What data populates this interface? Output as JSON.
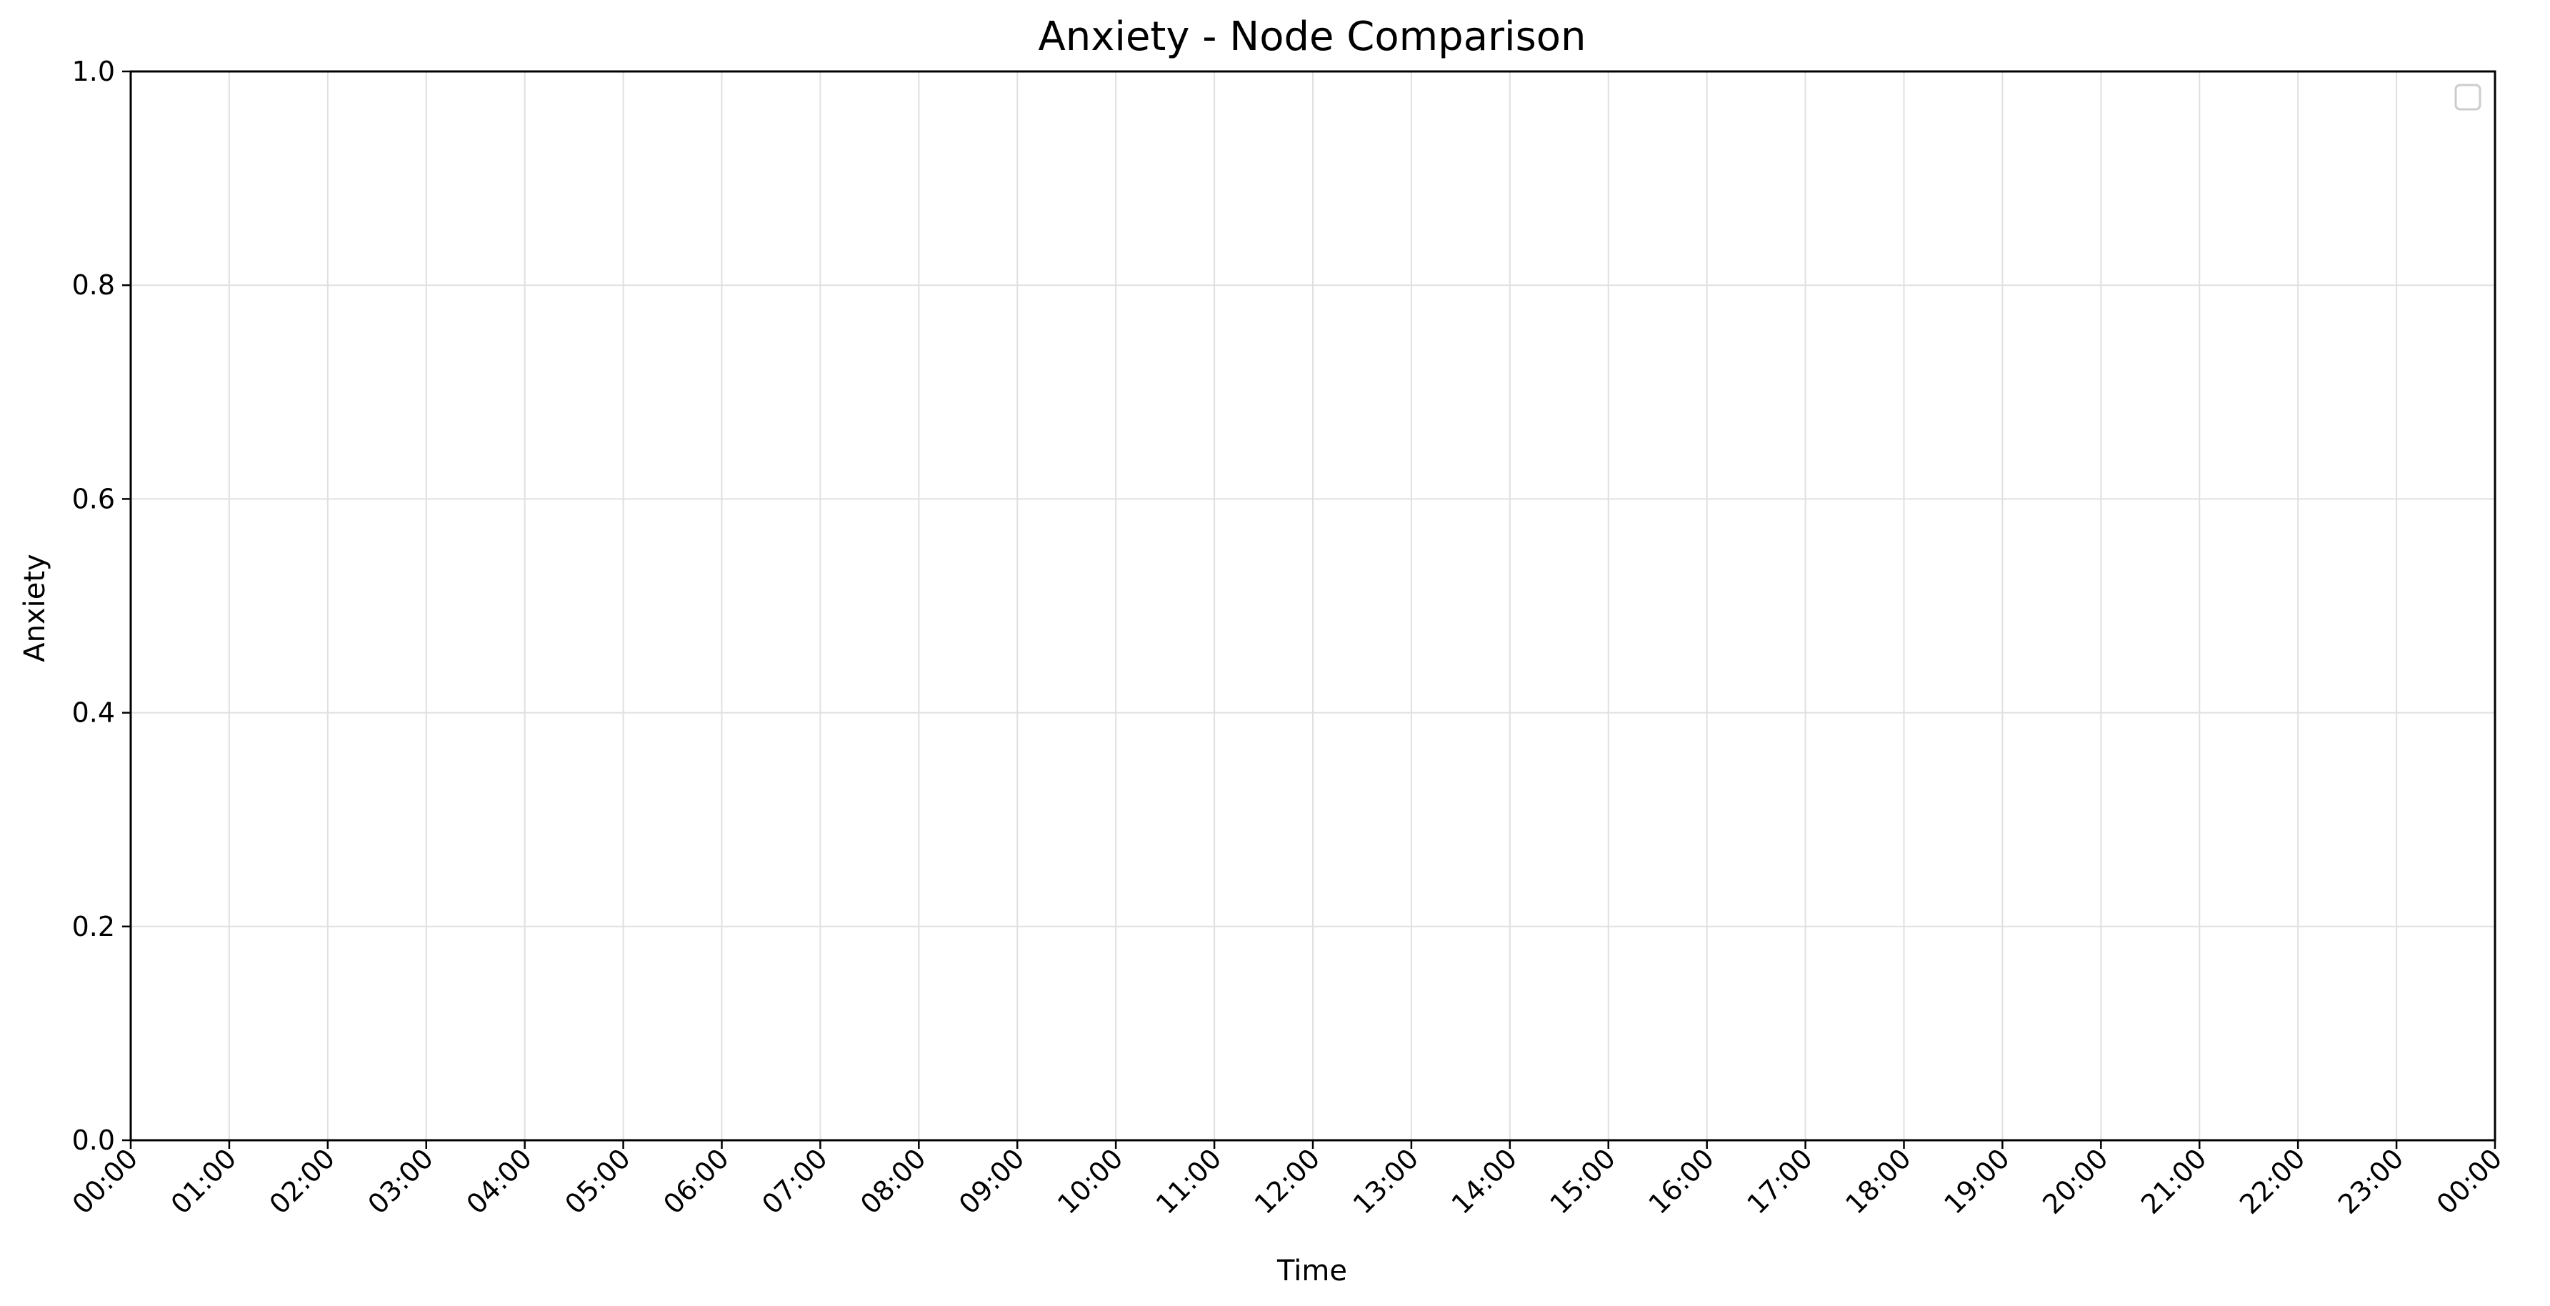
{
  "chart_data": {
    "type": "line",
    "title": "Anxiety - Node Comparison",
    "xlabel": "Time",
    "ylabel": "Anxiety",
    "x_ticks": [
      "00:00",
      "01:00",
      "02:00",
      "03:00",
      "04:00",
      "05:00",
      "06:00",
      "07:00",
      "08:00",
      "09:00",
      "10:00",
      "11:00",
      "12:00",
      "13:00",
      "14:00",
      "15:00",
      "16:00",
      "17:00",
      "18:00",
      "19:00",
      "20:00",
      "21:00",
      "22:00",
      "23:00",
      "00:00"
    ],
    "y_ticks": [
      "0.0",
      "0.2",
      "0.4",
      "0.6",
      "0.8",
      "1.0"
    ],
    "ylim": [
      0,
      1
    ],
    "xlim": [
      "00:00",
      "00:00"
    ],
    "series": [],
    "grid": true,
    "legend": {
      "placement": "upper right",
      "entries": []
    },
    "colors": {
      "grid": "#e0e0e0",
      "axis": "#000000",
      "background": "#ffffff"
    }
  }
}
